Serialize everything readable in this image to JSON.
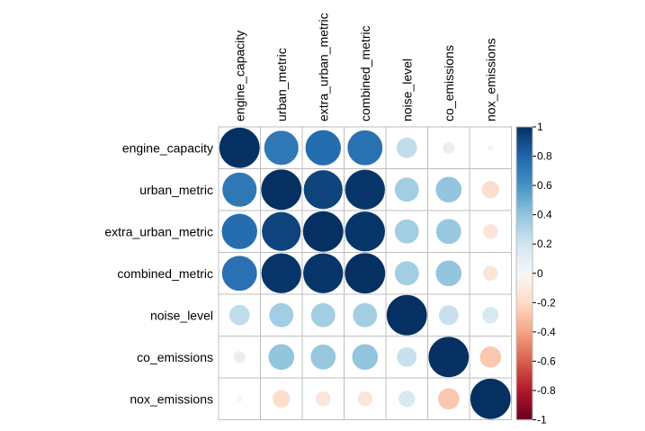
{
  "chart_data": {
    "type": "heatmap",
    "style": "circle",
    "variables": [
      "engine_capacity",
      "urban_metric",
      "extra_urban_metric",
      "combined_metric",
      "noise_level",
      "co_emissions",
      "nox_emissions"
    ],
    "matrix": [
      [
        1.0,
        0.72,
        0.77,
        0.75,
        0.25,
        0.08,
        0.02
      ],
      [
        0.72,
        1.0,
        0.93,
        0.98,
        0.35,
        0.4,
        -0.18
      ],
      [
        0.77,
        0.93,
        1.0,
        0.98,
        0.35,
        0.38,
        -0.13
      ],
      [
        0.75,
        0.98,
        0.98,
        1.0,
        0.35,
        0.4,
        -0.13
      ],
      [
        0.25,
        0.35,
        0.35,
        0.35,
        1.0,
        0.23,
        0.16
      ],
      [
        0.08,
        0.4,
        0.38,
        0.4,
        0.23,
        1.0,
        -0.27
      ],
      [
        0.02,
        -0.18,
        -0.13,
        -0.13,
        0.16,
        -0.27,
        1.0
      ]
    ],
    "colorbar": {
      "range": [
        -1,
        1
      ],
      "ticks": [
        "1",
        "0.8",
        "0.6",
        "0.4",
        "0.2",
        "0",
        "-0.2",
        "-0.4",
        "-0.6",
        "-0.8",
        "-1"
      ]
    },
    "colors": {
      "negative_end": "#67001F",
      "neutral": "#F7F7F7",
      "positive_end": "#053061",
      "grid": "#BEBEBE"
    }
  }
}
